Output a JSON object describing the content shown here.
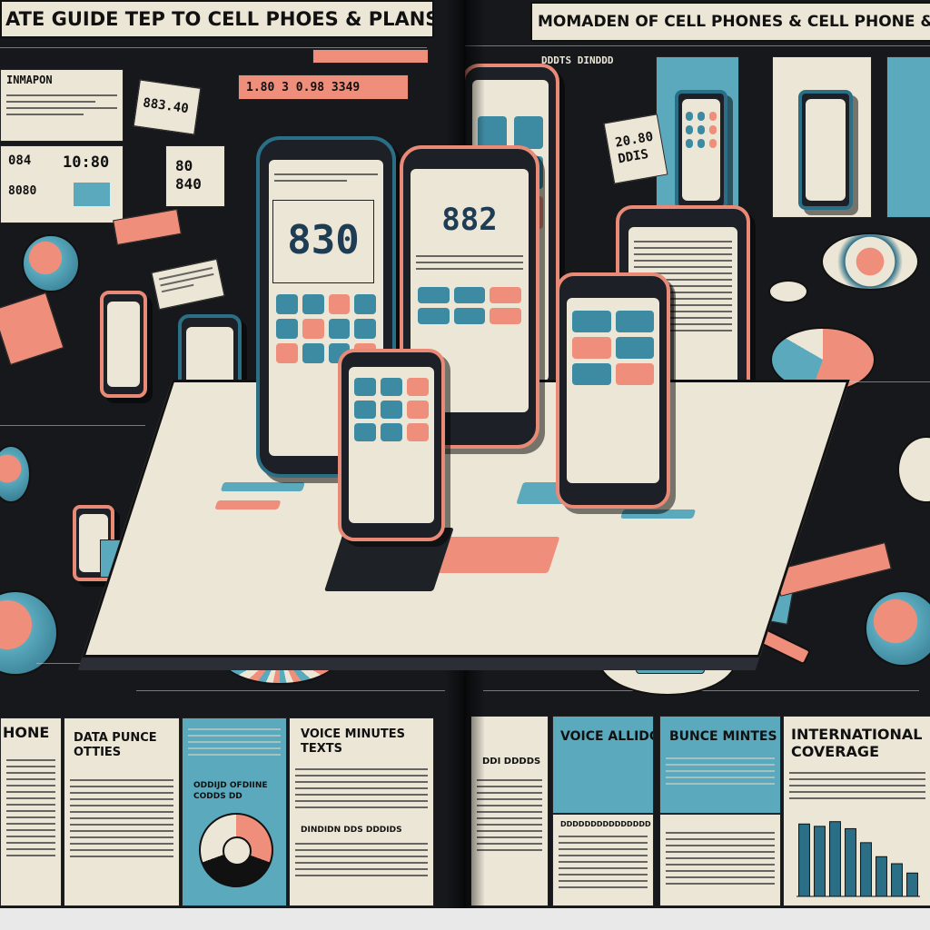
{
  "left_page": {
    "title": "ATE GUIDE TEP TO CELL PHOES & PLANS",
    "header_box": "INMAPON",
    "badge_small": "883.40",
    "price_strip": "1.80  3  0.98  3349",
    "stat_a": "084",
    "stat_b": "10:80",
    "stat_c": "8080",
    "callout": "80\n840",
    "main_phone_number": "830",
    "section_phone": "HONE",
    "section_data": "DATA PUNCE\nOTTIES",
    "section_data2": "ODDIJD OFDIINE\nCODDS DD",
    "section_voice": "VOICE MINUTES\nTEXTS",
    "section_voice2": "DINDIDN DDS DDDIDS"
  },
  "right_page": {
    "title": "MOMADEN OF CELL PHONES & CELL PHONE & PLA",
    "tab_1": "DDDTS DINDDD",
    "badge": "20.80\nDDIS",
    "center_phone_number": "882",
    "section_voice": "VOICE ALLIDGE",
    "section_bunce": "BUNCE MINTES",
    "section_international": "INTERNATIONAL\nCOVERAGE",
    "section_misc": "DDI DDDDS",
    "section_misc2": "DDDDDDDDDDDDDDD"
  },
  "chart_data": {
    "type": "bar",
    "categories": [
      "",
      "",
      "",
      "",
      "",
      "",
      "",
      ""
    ],
    "values": [
      62,
      60,
      64,
      58,
      46,
      34,
      28,
      20
    ],
    "title": "",
    "xlabel": "",
    "ylabel": "",
    "ylim": [
      0,
      70
    ]
  },
  "colors": {
    "accent_salmon": "#ef8f7b",
    "accent_blue": "#5aa9bd",
    "deep_blue": "#2b6f87",
    "paper": "#ece6d6",
    "ink": "#111111",
    "background": "#16181c"
  }
}
